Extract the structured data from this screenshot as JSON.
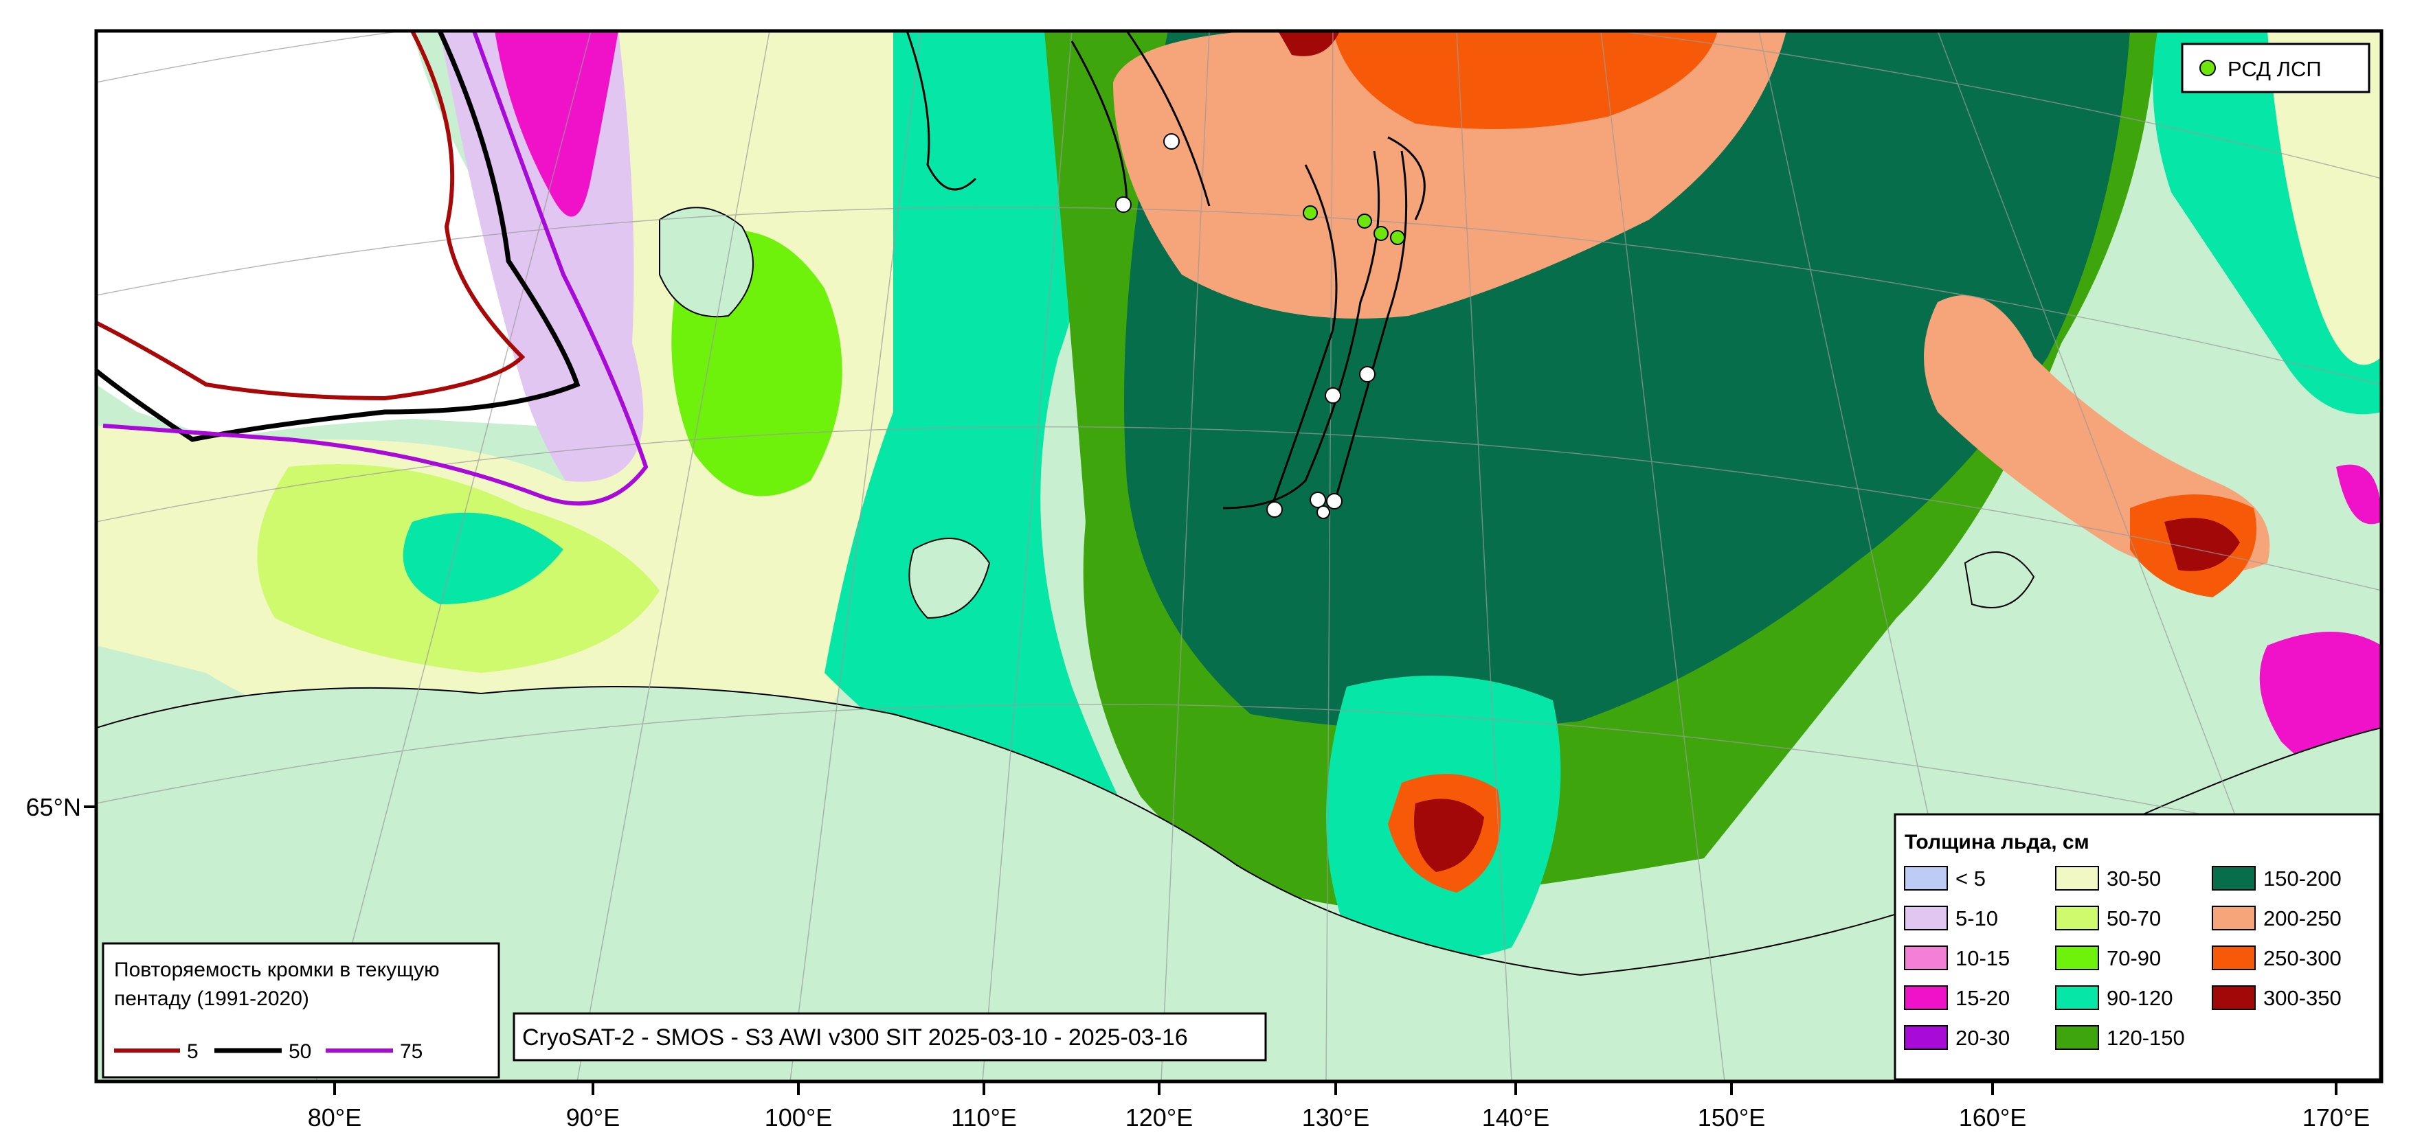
{
  "legend": {
    "title": "Толщина льда, см",
    "items": [
      {
        "label": "< 5",
        "color": "#bcccf4"
      },
      {
        "label": "5-10",
        "color": "#e2c6f2"
      },
      {
        "label": "10-15",
        "color": "#f47fd6"
      },
      {
        "label": "15-20",
        "color": "#ef12c8"
      },
      {
        "label": "20-30",
        "color": "#a80ad8"
      },
      {
        "label": "30-50",
        "color": "#f2f8c4"
      },
      {
        "label": "50-70",
        "color": "#d0fa6e"
      },
      {
        "label": "70-90",
        "color": "#6ef20c"
      },
      {
        "label": "90-120",
        "color": "#06e6a6"
      },
      {
        "label": "120-150",
        "color": "#3ea60c"
      },
      {
        "label": "150-200",
        "color": "#066e4a"
      },
      {
        "label": "200-250",
        "color": "#f6a47a"
      },
      {
        "label": "250-300",
        "color": "#f65a08"
      },
      {
        "label": "300-350",
        "color": "#a20808"
      }
    ]
  },
  "stations": {
    "label": "РСД ЛСП",
    "color": "#6ee60c"
  },
  "repeatability": {
    "title_line1": "Повторяемость кромки в текущую",
    "title_line2": "пентаду (1991-2020)",
    "items": [
      {
        "label": "5",
        "color": "#a80808"
      },
      {
        "label": "50",
        "color": "#000000"
      },
      {
        "label": "75",
        "color": "#a80ad8"
      }
    ]
  },
  "caption": "CryoSAT-2 - SMOS - S3 AWI v300 SIT 2025-03-10 - 2025-03-16",
  "axes": {
    "lon_ticks": [
      "80°E",
      "90°E",
      "100°E",
      "110°E",
      "120°E",
      "130°E",
      "140°E",
      "150°E",
      "160°E",
      "170°E"
    ],
    "lat_ticks": [
      "65°N"
    ]
  },
  "colors": {
    "land": "#c8f0d0",
    "frame": "#000000"
  }
}
